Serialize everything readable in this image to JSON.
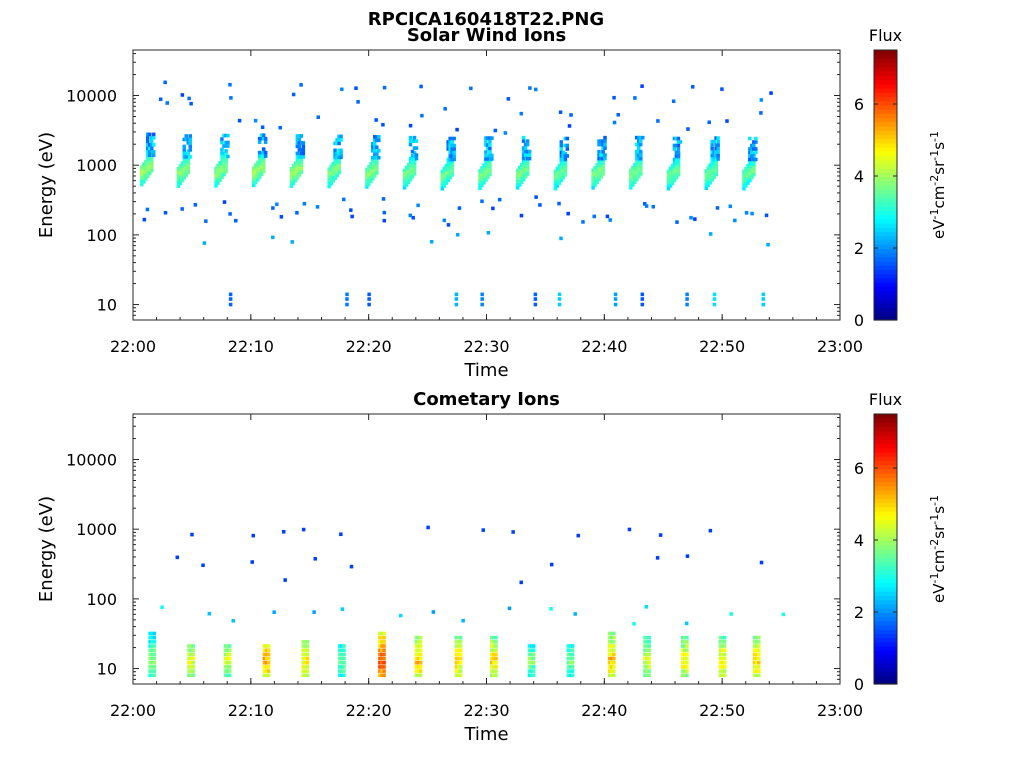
{
  "figure_title": "RPCICA160418T22.PNG",
  "chart_data": [
    {
      "type": "heatmap",
      "title": "Solar Wind Ions",
      "xlabel": "Time",
      "ylabel": "Energy (eV)",
      "x_ticks": [
        "22:00",
        "22:10",
        "22:20",
        "22:30",
        "22:40",
        "22:50",
        "23:00"
      ],
      "x_range_minutes": [
        0,
        60
      ],
      "y_scale": "log",
      "y_ticks": [
        "10",
        "100",
        "1000",
        "10000"
      ],
      "y_range": [
        6,
        45000
      ],
      "grid": false,
      "colorbar": {
        "title": "Flux",
        "label": "eV-1cm-2sr-1s-1",
        "ticks": [
          "0",
          "2",
          "4",
          "6"
        ],
        "range": [
          0,
          7.5
        ],
        "colormap": "jet"
      },
      "bursts": [
        {
          "t": 0.6,
          "e_center": 780,
          "flux_peak": 3.8
        },
        {
          "t": 3.7,
          "e_center": 740,
          "flux_peak": 3.7
        },
        {
          "t": 6.9,
          "e_center": 750,
          "flux_peak": 3.7
        },
        {
          "t": 10.1,
          "e_center": 760,
          "flux_peak": 3.8
        },
        {
          "t": 13.3,
          "e_center": 740,
          "flux_peak": 3.8
        },
        {
          "t": 16.5,
          "e_center": 730,
          "flux_peak": 3.6
        },
        {
          "t": 19.7,
          "e_center": 720,
          "flux_peak": 3.7
        },
        {
          "t": 22.9,
          "e_center": 700,
          "flux_peak": 3.6
        },
        {
          "t": 26.1,
          "e_center": 680,
          "flux_peak": 3.5
        },
        {
          "t": 29.3,
          "e_center": 690,
          "flux_peak": 3.6
        },
        {
          "t": 32.5,
          "e_center": 700,
          "flux_peak": 3.6
        },
        {
          "t": 35.7,
          "e_center": 680,
          "flux_peak": 3.5
        },
        {
          "t": 38.9,
          "e_center": 700,
          "flux_peak": 3.6
        },
        {
          "t": 42.1,
          "e_center": 700,
          "flux_peak": 3.6
        },
        {
          "t": 45.3,
          "e_center": 680,
          "flux_peak": 3.5
        },
        {
          "t": 48.5,
          "e_center": 690,
          "flux_peak": 3.5
        },
        {
          "t": 51.7,
          "e_center": 680,
          "flux_peak": 3.5
        }
      ]
    },
    {
      "type": "heatmap",
      "title": "Cometary Ions",
      "xlabel": "Time",
      "ylabel": "Energy (eV)",
      "x_ticks": [
        "22:00",
        "22:10",
        "22:20",
        "22:30",
        "22:40",
        "22:50",
        "23:00"
      ],
      "x_range_minutes": [
        0,
        60
      ],
      "y_scale": "log",
      "y_ticks": [
        "10",
        "100",
        "1000",
        "10000"
      ],
      "y_range": [
        6,
        45000
      ],
      "grid": false,
      "colorbar": {
        "title": "Flux",
        "label": "eV-1cm-2sr-1s-1",
        "ticks": [
          "0",
          "2",
          "4",
          "6"
        ],
        "range": [
          0,
          7.5
        ],
        "colormap": "jet"
      },
      "bursts": [
        {
          "t": 1.3,
          "e_top": 32,
          "flux_peak": 4.0
        },
        {
          "t": 4.6,
          "e_top": 22,
          "flux_peak": 4.6
        },
        {
          "t": 7.7,
          "e_top": 22,
          "flux_peak": 4.4
        },
        {
          "t": 11.0,
          "e_top": 22,
          "flux_peak": 5.4
        },
        {
          "t": 14.3,
          "e_top": 25,
          "flux_peak": 4.8
        },
        {
          "t": 17.4,
          "e_top": 22,
          "flux_peak": 3.8
        },
        {
          "t": 20.8,
          "e_top": 32,
          "flux_peak": 6.0
        },
        {
          "t": 23.9,
          "e_top": 30,
          "flux_peak": 5.2
        },
        {
          "t": 27.3,
          "e_top": 28,
          "flux_peak": 5.0
        },
        {
          "t": 30.3,
          "e_top": 28,
          "flux_peak": 5.0
        },
        {
          "t": 33.5,
          "e_top": 22,
          "flux_peak": 3.8
        },
        {
          "t": 36.8,
          "e_top": 22,
          "flux_peak": 3.7
        },
        {
          "t": 40.3,
          "e_top": 32,
          "flux_peak": 5.2
        },
        {
          "t": 43.3,
          "e_top": 30,
          "flux_peak": 4.4
        },
        {
          "t": 46.5,
          "e_top": 30,
          "flux_peak": 4.8
        },
        {
          "t": 49.7,
          "e_top": 30,
          "flux_peak": 4.8
        },
        {
          "t": 52.6,
          "e_top": 28,
          "flux_peak": 5.0
        }
      ]
    }
  ]
}
